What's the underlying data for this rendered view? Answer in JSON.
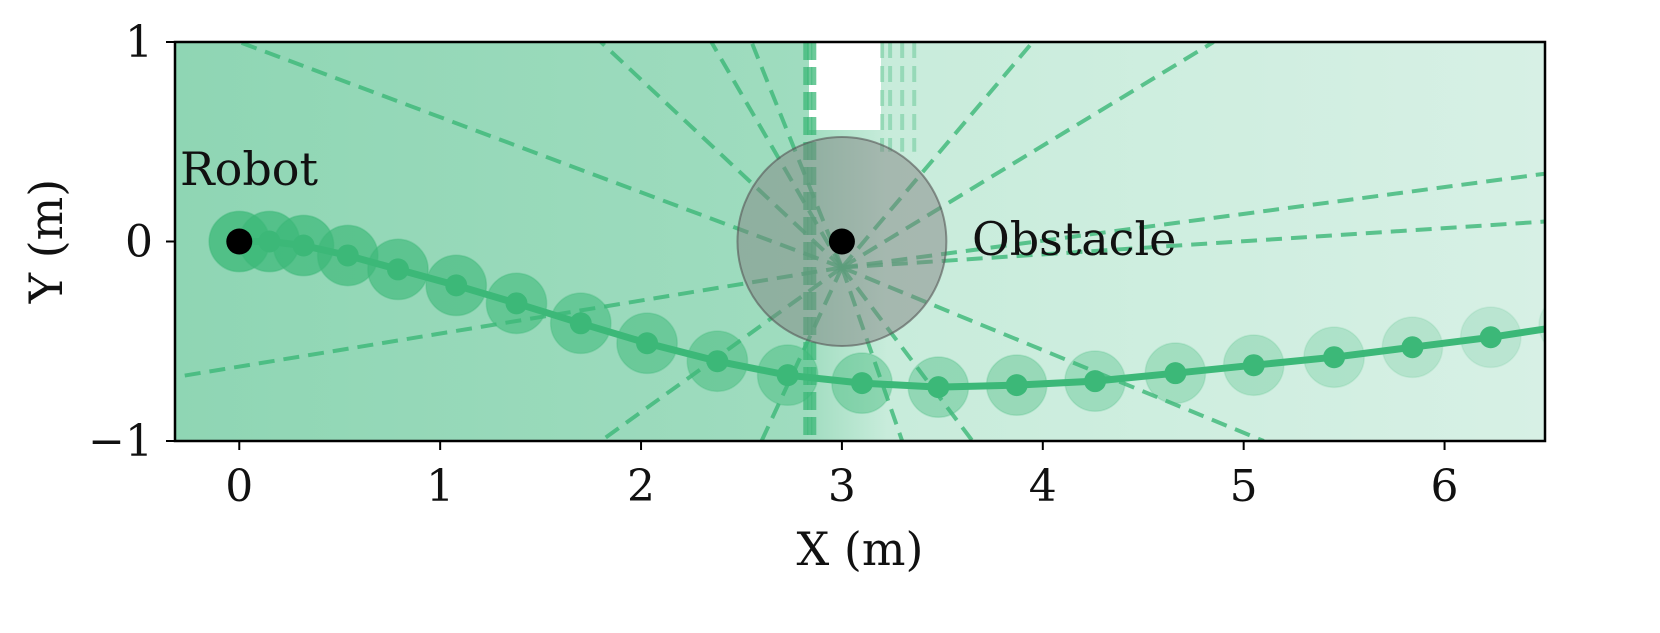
{
  "chart_data": {
    "type": "scatter",
    "xlabel": "X (m)",
    "ylabel": "Y (m)",
    "xlim": [
      -0.32,
      6.5
    ],
    "ylim": [
      -1,
      1
    ],
    "x_ticks": [
      {
        "value": 0,
        "label": "0"
      },
      {
        "value": 1,
        "label": "1"
      },
      {
        "value": 2,
        "label": "2"
      },
      {
        "value": 3,
        "label": "3"
      },
      {
        "value": 4,
        "label": "4"
      },
      {
        "value": 5,
        "label": "5"
      },
      {
        "value": 6,
        "label": "6"
      }
    ],
    "y_ticks": [
      {
        "value": -1,
        "label": "−1"
      },
      {
        "value": 0,
        "label": "0"
      },
      {
        "value": 1,
        "label": "1"
      }
    ],
    "grid": false,
    "legend": "none",
    "robot": {
      "label": "Robot",
      "x": 0,
      "y": 0
    },
    "obstacle": {
      "label": "Obstacle",
      "x": 3,
      "y": 0,
      "radius": 0.52
    },
    "trajectory": {
      "radius": 0.15,
      "points": [
        [
          0,
          0
        ],
        [
          0.15,
          0
        ],
        [
          0.32,
          -0.02
        ],
        [
          0.54,
          -0.07
        ],
        [
          0.79,
          -0.14
        ],
        [
          1.08,
          -0.22
        ],
        [
          1.38,
          -0.31
        ],
        [
          1.7,
          -0.41
        ],
        [
          2.03,
          -0.51
        ],
        [
          2.38,
          -0.6
        ],
        [
          2.73,
          -0.67
        ],
        [
          3.1,
          -0.71
        ],
        [
          3.48,
          -0.73
        ],
        [
          3.87,
          -0.72
        ],
        [
          4.26,
          -0.7
        ],
        [
          4.66,
          -0.66
        ],
        [
          5.05,
          -0.62
        ],
        [
          5.45,
          -0.58
        ],
        [
          5.84,
          -0.53
        ],
        [
          6.23,
          -0.48
        ],
        [
          6.62,
          -0.42
        ]
      ]
    },
    "colors": {
      "accent": "#3cb878",
      "region_dark": "#8fd6b4",
      "region_light": "#d7f0e5",
      "obstacle_fill": "#808080",
      "dot": "#000000"
    }
  }
}
